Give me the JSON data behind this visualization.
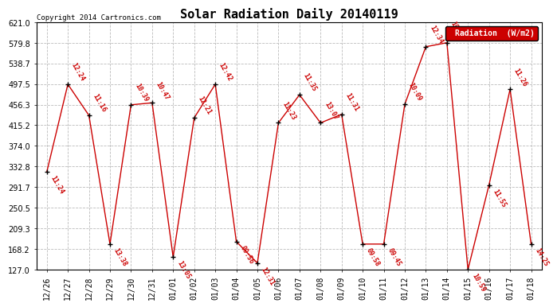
{
  "title": "Solar Radiation Daily 20140119",
  "copyright": "Copyright 2014 Cartronics.com",
  "legend_label": "Radiation  (W/m2)",
  "dates": [
    "12/26",
    "12/27",
    "12/28",
    "12/29",
    "12/30",
    "12/31",
    "01/01",
    "01/02",
    "01/03",
    "01/04",
    "01/05",
    "01/06",
    "01/07",
    "01/08",
    "01/09",
    "01/10",
    "01/11",
    "01/12",
    "01/13",
    "01/14",
    "01/15",
    "01/16",
    "01/17",
    "01/18"
  ],
  "values": [
    322,
    497,
    435,
    178,
    456,
    460,
    152,
    430,
    497,
    183,
    140,
    420,
    476,
    420,
    437,
    178,
    178,
    457,
    572,
    580,
    127,
    296,
    487,
    178
  ],
  "labels": [
    "11:24",
    "12:24",
    "11:16",
    "13:38",
    "10:39",
    "10:47",
    "13:05",
    "12:21",
    "12:42",
    "09:56",
    "12:31",
    "11:23",
    "11:35",
    "13:07",
    "11:31",
    "09:58",
    "09:45",
    "10:09",
    "12:34",
    "10:09",
    "10:59",
    "11:55",
    "11:26",
    "14:25"
  ],
  "yticks": [
    127.0,
    168.2,
    209.3,
    250.5,
    291.7,
    332.8,
    374.0,
    415.2,
    456.3,
    497.5,
    538.7,
    579.8,
    621.0
  ],
  "ymin": 127.0,
  "ymax": 621.0,
  "line_color": "#cc0000",
  "marker_color": "#000000",
  "label_color": "#cc0000",
  "bg_color": "#ffffff",
  "grid_color": "#bbbbbb",
  "title_fontsize": 11,
  "label_fontsize": 6,
  "tick_fontsize": 7,
  "legend_bg": "#cc0000",
  "legend_fg": "#ffffff"
}
